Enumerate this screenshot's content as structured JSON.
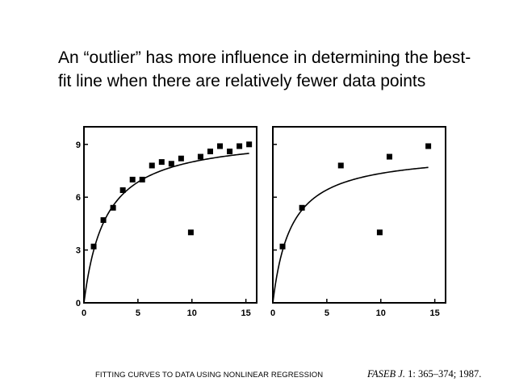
{
  "slide": {
    "title_line1": "An “outlier” has more influence in determining the best-",
    "title_line2": "fit line when there are relatively fewer data points"
  },
  "figure": {
    "caption": "FITTING CURVES TO DATA USING NONLINEAR REGRESSION",
    "citation_journal": "FASEB J.",
    "citation_rest": " 1: 365–374; 1987."
  },
  "colors": {
    "ink": "#000000",
    "background": "#ffffff"
  },
  "chart_data": [
    {
      "type": "scatter",
      "panel": "left",
      "xlim": [
        0,
        16
      ],
      "ylim": [
        0,
        10
      ],
      "xticks": [
        0,
        5,
        10,
        15
      ],
      "yticks": [
        0,
        3,
        6,
        9
      ],
      "points": [
        [
          0.9,
          3.2
        ],
        [
          1.8,
          4.7
        ],
        [
          2.7,
          5.4
        ],
        [
          3.6,
          6.4
        ],
        [
          4.5,
          7.0
        ],
        [
          5.4,
          7.0
        ],
        [
          6.3,
          7.8
        ],
        [
          7.2,
          8.0
        ],
        [
          8.1,
          7.9
        ],
        [
          9.0,
          8.2
        ],
        [
          9.9,
          4.0
        ],
        [
          10.8,
          8.3
        ],
        [
          11.7,
          8.6
        ],
        [
          12.6,
          8.9
        ],
        [
          13.5,
          8.6
        ],
        [
          14.4,
          8.9
        ],
        [
          15.3,
          9.0
        ]
      ],
      "fit_curve": {
        "vmax": 9.6,
        "k": 2.0,
        "x_end": 15.3
      },
      "grid": false,
      "legend": "none"
    },
    {
      "type": "scatter",
      "panel": "right",
      "xlim": [
        0,
        16
      ],
      "ylim": [
        0,
        10
      ],
      "xticks": [
        0,
        5,
        10,
        15
      ],
      "yticks": [
        0,
        3,
        6,
        9
      ],
      "points": [
        [
          0.9,
          3.2
        ],
        [
          2.7,
          5.4
        ],
        [
          6.3,
          7.8
        ],
        [
          9.9,
          4.0
        ],
        [
          10.8,
          8.3
        ],
        [
          14.4,
          8.9
        ]
      ],
      "fit_curve": {
        "vmax": 8.6,
        "k": 1.7,
        "x_end": 14.4
      },
      "grid": false,
      "legend": "none"
    }
  ]
}
